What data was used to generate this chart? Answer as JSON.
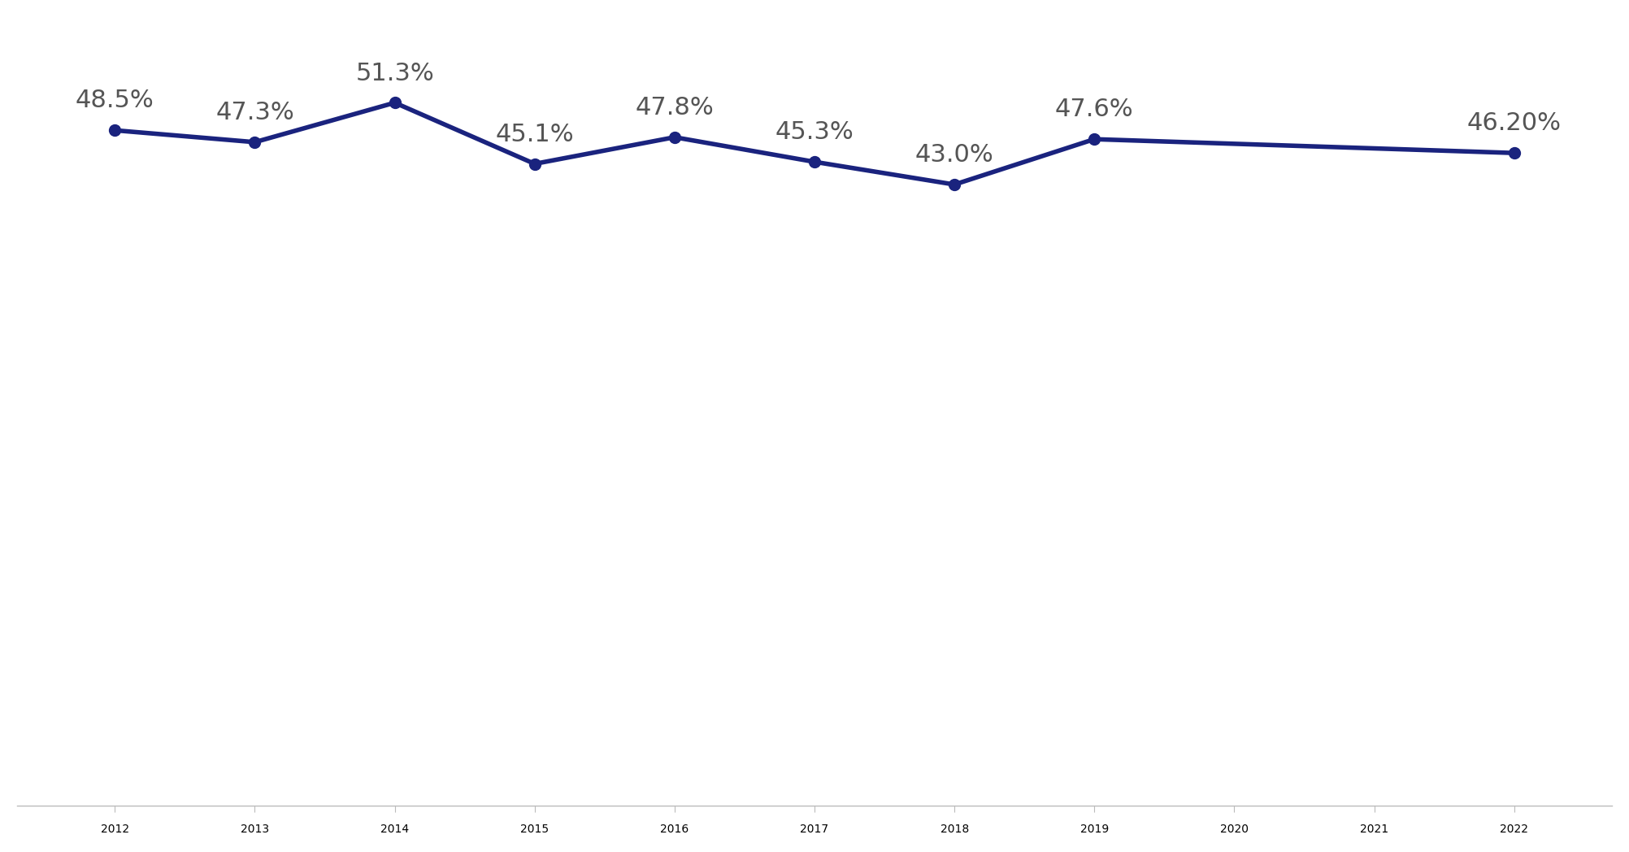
{
  "years": [
    2012,
    2013,
    2014,
    2015,
    2016,
    2017,
    2018,
    2019,
    2020,
    2021,
    2022
  ],
  "values": [
    48.5,
    47.3,
    51.3,
    45.1,
    47.8,
    45.3,
    43.0,
    47.6,
    null,
    null,
    46.2
  ],
  "labels": [
    "48.5%",
    "47.3%",
    "51.3%",
    "45.1%",
    "47.8%",
    "45.3%",
    "43.0%",
    "47.6%",
    null,
    null,
    "46.20%"
  ],
  "line_color": "#1a237e",
  "marker_style": "o",
  "marker_size": 10,
  "line_width": 4.0,
  "background_color": "#ffffff",
  "label_fontsize": 22,
  "tick_fontsize": 22,
  "label_color": "#555555",
  "tick_color": "#555555",
  "ylim": [
    -20,
    60
  ],
  "xlim": [
    2011.3,
    2022.7
  ]
}
